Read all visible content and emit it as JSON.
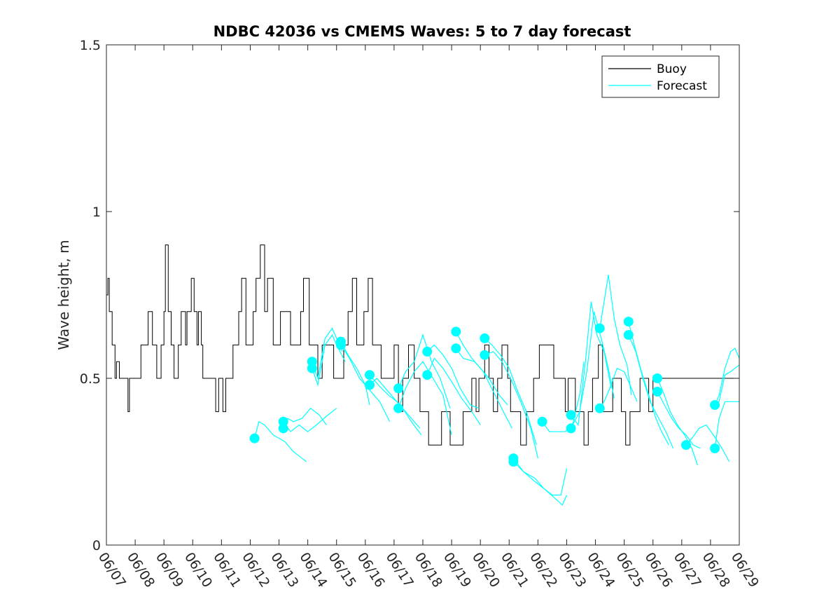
{
  "chart_data": {
    "type": "line",
    "title": "NDBC 42036 vs CMEMS Waves: 5 to 7 day forecast",
    "xlabel": "",
    "ylabel": "Wave height, m",
    "xlim": [
      "06/07",
      "06/29"
    ],
    "ylim": [
      0,
      1.5
    ],
    "x_ticks": [
      "06/07",
      "06/08",
      "06/09",
      "06/10",
      "06/11",
      "06/12",
      "06/13",
      "06/14",
      "06/15",
      "06/16",
      "06/17",
      "06/18",
      "06/19",
      "06/20",
      "06/21",
      "06/22",
      "06/23",
      "06/24",
      "06/25",
      "06/26",
      "06/27",
      "06/28",
      "06/29"
    ],
    "y_ticks": [
      0,
      0.5,
      1,
      1.5
    ],
    "y_tick_labels": [
      "0",
      "0.5",
      "1",
      "1.5"
    ],
    "legend_position": "top-right",
    "grid": false,
    "series": [
      {
        "name": "Buoy",
        "color": "#000000",
        "x": [
          0,
          0.05,
          0.1,
          0.15,
          0.2,
          0.25,
          0.3,
          0.35,
          0.45,
          0.6,
          0.75,
          0.8,
          0.85,
          0.95,
          1.2,
          1.3,
          1.45,
          1.6,
          1.75,
          1.9,
          2.0,
          2.05,
          2.15,
          2.2,
          2.25,
          2.35,
          2.5,
          2.6,
          2.75,
          2.8,
          2.95,
          3.05,
          3.15,
          3.2,
          3.3,
          3.35,
          3.5,
          3.65,
          3.8,
          3.9,
          4.05,
          4.15,
          4.35,
          4.4,
          4.5,
          4.6,
          4.7,
          4.85,
          5.0,
          5.1,
          5.2,
          5.35,
          5.5,
          5.6,
          5.8,
          5.95,
          6.05,
          6.2,
          6.4,
          6.55,
          6.75,
          6.85,
          7.05,
          7.15,
          7.35,
          7.5,
          7.7,
          7.9,
          8.0,
          8.1,
          8.25,
          8.4,
          8.55,
          8.7,
          8.85,
          8.95,
          9.1,
          9.25,
          9.4,
          9.55,
          9.65,
          9.85,
          10.0,
          10.15,
          10.3,
          10.5,
          10.7,
          10.9,
          11.05,
          11.2,
          11.35,
          11.5,
          11.65,
          11.8,
          11.95,
          12.1,
          12.2,
          12.4,
          12.55,
          12.7,
          12.85,
          12.95,
          13.15,
          13.3,
          13.45,
          13.6,
          13.75,
          13.95,
          14.05,
          14.2,
          14.4,
          14.6,
          14.85,
          15.05,
          15.3,
          15.55,
          15.75,
          15.95,
          16.05,
          16.15,
          16.3,
          16.45,
          16.6,
          16.75,
          16.9,
          17.1,
          17.25,
          17.45,
          17.6,
          17.75,
          17.9,
          18.05,
          18.2,
          18.4,
          18.55,
          18.7,
          18.85,
          19.0,
          19.15,
          19.3,
          19.45,
          19.6,
          19.75,
          19.9,
          20.05,
          20.2,
          20.35,
          20.5,
          20.65,
          20.8,
          20.95,
          21.1,
          21.25,
          21.4,
          21.55,
          21.7,
          21.85,
          22.0
        ],
        "y": [
          0.75,
          0.8,
          0.7,
          0.7,
          0.6,
          0.6,
          0.5,
          0.55,
          0.5,
          0.5,
          0.4,
          0.5,
          0.5,
          0.5,
          0.6,
          0.6,
          0.7,
          0.6,
          0.5,
          0.6,
          0.7,
          0.9,
          0.7,
          0.7,
          0.6,
          0.5,
          0.6,
          0.7,
          0.6,
          0.7,
          0.8,
          0.7,
          0.6,
          0.7,
          0.6,
          0.5,
          0.5,
          0.5,
          0.4,
          0.5,
          0.4,
          0.5,
          0.5,
          0.6,
          0.6,
          0.7,
          0.8,
          0.6,
          0.6,
          0.7,
          0.8,
          0.9,
          0.7,
          0.8,
          0.6,
          0.6,
          0.7,
          0.7,
          0.6,
          0.6,
          0.7,
          0.8,
          0.6,
          0.6,
          0.5,
          0.6,
          0.6,
          0.5,
          0.5,
          0.5,
          0.6,
          0.7,
          0.8,
          0.6,
          0.6,
          0.7,
          0.8,
          0.6,
          0.6,
          0.5,
          0.5,
          0.5,
          0.6,
          0.4,
          0.5,
          0.6,
          0.5,
          0.4,
          0.4,
          0.3,
          0.3,
          0.3,
          0.4,
          0.4,
          0.3,
          0.3,
          0.3,
          0.4,
          0.4,
          0.5,
          0.4,
          0.5,
          0.6,
          0.5,
          0.4,
          0.5,
          0.6,
          0.5,
          0.4,
          0.4,
          0.3,
          0.4,
          0.5,
          0.6,
          0.6,
          0.5,
          0.5,
          0.4,
          0.5,
          0.5,
          0.4,
          0.4,
          0.3,
          0.4,
          0.5,
          0.6,
          0.4,
          0.4,
          0.5,
          0.5,
          0.4,
          0.3,
          0.4,
          0.4,
          0.5,
          0.5,
          0.4,
          0.5,
          0.5,
          0.5,
          0.5,
          0.5,
          0.5,
          0.5,
          0.5,
          0.5,
          0.5,
          0.5,
          0.5,
          0.5,
          0.5,
          0.5,
          0.5,
          0.5,
          0.5,
          0.5,
          0.5,
          0.5
        ]
      },
      {
        "name": "Forecast",
        "color": "#00ffff",
        "segments": [
          {
            "x": [
              5.15,
              5.3,
              5.5,
              5.8,
              6.2,
              6.5,
              6.8,
              6.95
            ],
            "y": [
              0.32,
              0.37,
              0.36,
              0.33,
              0.31,
              0.28,
              0.26,
              0.25
            ]
          },
          {
            "x": [
              6.15,
              6.3,
              6.5,
              6.8,
              7.1,
              7.4,
              7.65
            ],
            "y": [
              0.35,
              0.38,
              0.37,
              0.38,
              0.41,
              0.39,
              0.36
            ]
          },
          {
            "x": [
              6.15,
              6.4,
              6.7,
              7.0,
              7.3,
              7.7,
              8.0
            ],
            "y": [
              0.37,
              0.34,
              0.36,
              0.34,
              0.36,
              0.39,
              0.41
            ]
          },
          {
            "x": [
              7.15,
              7.35,
              7.6,
              7.85,
              8.0,
              8.2
            ],
            "y": [
              0.55,
              0.5,
              0.62,
              0.65,
              0.62,
              0.58
            ]
          },
          {
            "x": [
              7.15,
              7.35,
              7.6,
              7.85,
              8.0,
              8.3
            ],
            "y": [
              0.53,
              0.48,
              0.6,
              0.63,
              0.6,
              0.55
            ]
          },
          {
            "x": [
              8.15,
              8.4,
              8.7,
              9.0,
              9.15
            ],
            "y": [
              0.61,
              0.57,
              0.53,
              0.48,
              0.42
            ]
          },
          {
            "x": [
              8.15,
              8.45,
              8.8,
              9.1,
              9.5,
              9.85
            ],
            "y": [
              0.6,
              0.56,
              0.5,
              0.47,
              0.43,
              0.37
            ]
          },
          {
            "x": [
              9.15,
              9.45,
              9.8,
              10.1,
              10.5,
              10.9
            ],
            "y": [
              0.51,
              0.48,
              0.45,
              0.43,
              0.39,
              0.35
            ]
          },
          {
            "x": [
              9.15,
              9.4,
              9.7,
              10.0,
              10.3,
              10.6,
              10.95
            ],
            "y": [
              0.48,
              0.5,
              0.47,
              0.44,
              0.41,
              0.37,
              0.33
            ]
          },
          {
            "x": [
              10.15,
              10.4,
              10.7,
              11.0,
              11.3,
              11.6,
              11.95
            ],
            "y": [
              0.47,
              0.52,
              0.55,
              0.63,
              0.55,
              0.5,
              0.41
            ]
          },
          {
            "x": [
              10.15,
              10.4,
              10.7,
              11.0,
              11.35,
              11.7,
              12.0
            ],
            "y": [
              0.41,
              0.47,
              0.52,
              0.55,
              0.5,
              0.45,
              0.33
            ]
          },
          {
            "x": [
              11.15,
              11.4,
              11.7,
              12.0,
              12.3,
              12.65,
              12.95
            ],
            "y": [
              0.58,
              0.6,
              0.57,
              0.53,
              0.47,
              0.42,
              0.41
            ]
          },
          {
            "x": [
              11.15,
              11.4,
              11.7,
              12.0,
              12.35,
              12.7,
              13.0
            ],
            "y": [
              0.51,
              0.56,
              0.53,
              0.49,
              0.44,
              0.4,
              0.36
            ]
          },
          {
            "x": [
              12.15,
              12.4,
              12.7,
              13.0,
              13.3,
              13.65,
              13.95
            ],
            "y": [
              0.64,
              0.6,
              0.56,
              0.53,
              0.5,
              0.45,
              0.42
            ]
          },
          {
            "x": [
              12.15,
              12.4,
              12.8,
              13.1,
              13.45,
              13.8,
              14.1
            ],
            "y": [
              0.59,
              0.56,
              0.55,
              0.52,
              0.46,
              0.4,
              0.35
            ]
          },
          {
            "x": [
              13.15,
              13.4,
              13.7,
              14.0,
              14.3,
              14.6,
              14.95
            ],
            "y": [
              0.62,
              0.6,
              0.57,
              0.53,
              0.46,
              0.4,
              0.3
            ]
          },
          {
            "x": [
              13.15,
              13.45,
              13.75,
              14.05,
              14.4,
              14.75,
              15.0
            ],
            "y": [
              0.57,
              0.58,
              0.55,
              0.5,
              0.43,
              0.35,
              0.26
            ]
          },
          {
            "x": [
              14.15,
              14.5,
              14.9,
              15.2,
              15.5,
              15.8,
              16.0
            ],
            "y": [
              0.26,
              0.22,
              0.2,
              0.17,
              0.15,
              0.15,
              0.23
            ]
          },
          {
            "x": [
              14.15,
              14.5,
              14.9,
              15.2,
              15.6,
              15.85,
              16.0
            ],
            "y": [
              0.25,
              0.22,
              0.19,
              0.17,
              0.14,
              0.12,
              0.15
            ]
          },
          {
            "x": [
              15.15,
              15.4,
              15.7,
              15.95,
              16.2,
              16.45,
              16.6
            ],
            "y": [
              0.37,
              0.34,
              0.34,
              0.34,
              0.36,
              0.45,
              0.55
            ]
          },
          {
            "x": [
              16.15,
              16.4,
              16.65,
              16.85,
              17.05,
              17.3,
              17.55
            ],
            "y": [
              0.39,
              0.36,
              0.55,
              0.73,
              0.63,
              0.58,
              0.47
            ]
          },
          {
            "x": [
              16.15,
              16.45,
              16.7,
              16.95,
              17.2,
              17.45,
              17.65
            ],
            "y": [
              0.35,
              0.4,
              0.52,
              0.7,
              0.62,
              0.53,
              0.44
            ]
          },
          {
            "x": [
              17.15,
              17.3,
              17.45,
              17.65,
              17.85,
              18.1,
              18.25
            ],
            "y": [
              0.65,
              0.73,
              0.81,
              0.68,
              0.6,
              0.54,
              0.45
            ]
          },
          {
            "x": [
              17.15,
              17.3,
              17.5,
              17.75,
              18.0,
              18.2,
              18.45
            ],
            "y": [
              0.41,
              0.43,
              0.47,
              0.53,
              0.52,
              0.48,
              0.43
            ]
          },
          {
            "x": [
              18.15,
              18.35,
              18.6,
              18.85,
              19.1,
              19.3,
              19.55
            ],
            "y": [
              0.67,
              0.6,
              0.52,
              0.45,
              0.38,
              0.34,
              0.3
            ]
          },
          {
            "x": [
              18.15,
              18.4,
              18.65,
              18.9,
              19.2,
              19.45,
              19.7
            ],
            "y": [
              0.63,
              0.58,
              0.5,
              0.43,
              0.38,
              0.34,
              0.29
            ]
          },
          {
            "x": [
              19.15,
              19.35,
              19.6,
              19.85,
              20.1,
              20.35,
              20.55
            ],
            "y": [
              0.5,
              0.46,
              0.4,
              0.36,
              0.33,
              0.29,
              0.24
            ]
          },
          {
            "x": [
              19.15,
              19.4,
              19.65,
              19.9,
              20.15,
              20.4,
              20.65
            ],
            "y": [
              0.46,
              0.42,
              0.38,
              0.35,
              0.33,
              0.3,
              0.29
            ]
          },
          {
            "x": [
              20.15,
              20.35,
              20.6,
              20.85,
              21.1,
              21.4,
              21.65
            ],
            "y": [
              0.3,
              0.32,
              0.35,
              0.36,
              0.33,
              0.29,
              0.25
            ]
          },
          {
            "x": [
              21.15,
              21.3,
              21.5,
              21.7,
              21.85,
              22.0
            ],
            "y": [
              0.42,
              0.45,
              0.53,
              0.58,
              0.59,
              0.56
            ]
          },
          {
            "x": [
              21.15,
              21.3,
              21.5,
              21.7,
              21.85,
              22.0
            ],
            "y": [
              0.42,
              0.43,
              0.51,
              0.52,
              0.53,
              0.54
            ]
          },
          {
            "x": [
              21.15,
              21.3,
              21.5,
              21.7,
              21.85,
              22.0
            ],
            "y": [
              0.29,
              0.38,
              0.43,
              0.43,
              0.43,
              0.43
            ]
          }
        ],
        "markers": {
          "x": [
            5.15,
            6.15,
            6.15,
            7.15,
            7.15,
            8.15,
            8.15,
            9.15,
            9.15,
            10.15,
            10.15,
            11.15,
            11.15,
            12.15,
            12.15,
            13.15,
            13.15,
            14.15,
            14.15,
            15.15,
            16.15,
            16.15,
            17.15,
            17.15,
            18.15,
            18.15,
            19.15,
            19.15,
            20.15,
            21.15,
            21.15
          ],
          "y": [
            0.32,
            0.35,
            0.37,
            0.55,
            0.53,
            0.61,
            0.6,
            0.51,
            0.48,
            0.47,
            0.41,
            0.58,
            0.51,
            0.64,
            0.59,
            0.62,
            0.57,
            0.26,
            0.25,
            0.37,
            0.39,
            0.35,
            0.65,
            0.41,
            0.67,
            0.63,
            0.5,
            0.46,
            0.3,
            0.42,
            0.29
          ]
        }
      }
    ]
  }
}
